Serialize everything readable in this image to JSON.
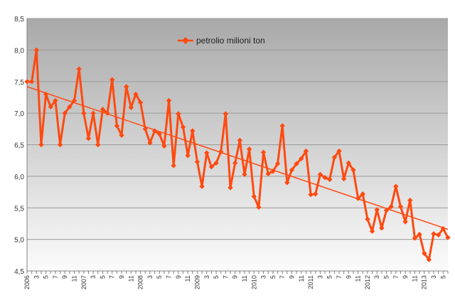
{
  "chart_data": {
    "type": "line",
    "ylim": [
      4.5,
      8.5
    ],
    "yticks": [
      "4,5",
      "5,0",
      "5,5",
      "6,0",
      "6,5",
      "7,0",
      "7,5",
      "8,0",
      "8,5"
    ],
    "grid": true,
    "legend_position": "top-center",
    "x_labels": [
      "2006",
      "3",
      "5",
      "7",
      "9",
      "11",
      "2007",
      "3",
      "5",
      "7",
      "9",
      "11",
      "2008",
      "3",
      "5",
      "7",
      "9",
      "11",
      "2009",
      "3",
      "5",
      "7",
      "9",
      "11",
      "2010",
      "3",
      "5",
      "7",
      "9",
      "11",
      "2011",
      "3",
      "5",
      "7",
      "9",
      "11",
      "2012",
      "3",
      "5",
      "7",
      "9",
      "11",
      "2013",
      "3",
      "5"
    ],
    "series": [
      {
        "name": "petrolio milioni ton",
        "color": "#ff4a10",
        "values": [
          7.5,
          7.5,
          8.0,
          6.5,
          7.3,
          7.1,
          7.2,
          6.5,
          7.0,
          7.1,
          7.2,
          7.7,
          7.0,
          6.6,
          7.0,
          6.5,
          7.06,
          7.0,
          7.53,
          6.8,
          6.65,
          7.42,
          7.09,
          7.3,
          7.17,
          6.75,
          6.53,
          6.72,
          6.67,
          6.48,
          7.2,
          6.17,
          6.99,
          6.78,
          6.33,
          6.72,
          6.23,
          5.84,
          6.37,
          6.15,
          6.21,
          6.39,
          6.99,
          5.82,
          6.21,
          6.57,
          6.03,
          6.43,
          5.68,
          5.51,
          6.38,
          6.04,
          6.08,
          6.2,
          6.8,
          5.9,
          6.1,
          6.2,
          6.28,
          6.4,
          5.71,
          5.72,
          6.03,
          5.98,
          5.95,
          6.3,
          6.4,
          5.96,
          6.21,
          6.1,
          5.65,
          5.72,
          5.32,
          5.13,
          5.47,
          5.18,
          5.46,
          5.52,
          5.84,
          5.52,
          5.28,
          5.62,
          5.02,
          5.08,
          4.78,
          4.68,
          5.09,
          5.07,
          5.17,
          5.03
        ]
      }
    ],
    "trendline": {
      "color": "#ff4a10",
      "start": 7.42,
      "end": 5.16
    }
  }
}
